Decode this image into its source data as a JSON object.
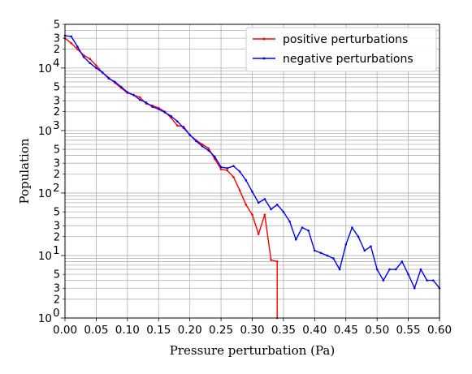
{
  "chart_data": {
    "type": "line",
    "xlabel": "Pressure perturbation (Pa)",
    "ylabel": "Population",
    "xlim": [
      0.0,
      0.6
    ],
    "ylim": [
      1,
      50000
    ],
    "y_scale": "log",
    "grid": true,
    "legend_position": "top-right",
    "x_ticks": [
      "0.00",
      "0.05",
      "0.10",
      "0.15",
      "0.20",
      "0.25",
      "0.30",
      "0.35",
      "0.40",
      "0.45",
      "0.50",
      "0.55",
      "0.60"
    ],
    "x_tick_values": [
      0.0,
      0.05,
      0.1,
      0.15,
      0.2,
      0.25,
      0.3,
      0.35,
      0.4,
      0.45,
      0.5,
      0.55,
      0.6
    ],
    "y_major_ticks": [
      {
        "value": 1,
        "mantissa": "10",
        "exp": "0"
      },
      {
        "value": 10,
        "mantissa": "10",
        "exp": "1"
      },
      {
        "value": 100,
        "mantissa": "10",
        "exp": "2"
      },
      {
        "value": 1000,
        "mantissa": "10",
        "exp": "3"
      },
      {
        "value": 10000,
        "mantissa": "10",
        "exp": "4"
      }
    ],
    "y_minor_labeled": [
      {
        "value": 2,
        "label": "2"
      },
      {
        "value": 3,
        "label": "3"
      },
      {
        "value": 5,
        "label": "5"
      },
      {
        "value": 20,
        "label": "2"
      },
      {
        "value": 30,
        "label": "3"
      },
      {
        "value": 50,
        "label": "5"
      },
      {
        "value": 200,
        "label": "2"
      },
      {
        "value": 300,
        "label": "3"
      },
      {
        "value": 500,
        "label": "5"
      },
      {
        "value": 2000,
        "label": "2"
      },
      {
        "value": 3000,
        "label": "3"
      },
      {
        "value": 5000,
        "label": "5"
      },
      {
        "value": 20000,
        "label": "2"
      },
      {
        "value": 30000,
        "label": "3"
      },
      {
        "value": 50000,
        "label": "5"
      }
    ],
    "series": [
      {
        "name": "positive perturbations",
        "color": "#ff0000",
        "x": [
          0.0,
          0.01,
          0.02,
          0.03,
          0.04,
          0.05,
          0.06,
          0.07,
          0.08,
          0.09,
          0.1,
          0.11,
          0.12,
          0.13,
          0.14,
          0.15,
          0.16,
          0.17,
          0.18,
          0.19,
          0.2,
          0.21,
          0.22,
          0.23,
          0.24,
          0.25,
          0.26,
          0.27,
          0.28,
          0.29,
          0.3,
          0.31,
          0.32,
          0.33,
          0.34,
          0.34
        ],
        "y": [
          30000,
          25000,
          20000,
          16000,
          14000,
          11000,
          8500,
          7000,
          5800,
          4800,
          4000,
          3700,
          3400,
          2700,
          2500,
          2300,
          2000,
          1600,
          1200,
          1150,
          850,
          700,
          600,
          520,
          350,
          240,
          230,
          180,
          110,
          65,
          45,
          22,
          45,
          8.5,
          8,
          1
        ]
      },
      {
        "name": "negative perturbations",
        "color": "#0000ff",
        "x": [
          0.0,
          0.01,
          0.02,
          0.03,
          0.04,
          0.05,
          0.06,
          0.07,
          0.08,
          0.09,
          0.1,
          0.11,
          0.12,
          0.13,
          0.14,
          0.15,
          0.16,
          0.17,
          0.18,
          0.19,
          0.2,
          0.21,
          0.22,
          0.23,
          0.24,
          0.25,
          0.26,
          0.27,
          0.28,
          0.29,
          0.3,
          0.31,
          0.32,
          0.33,
          0.34,
          0.35,
          0.36,
          0.37,
          0.38,
          0.39,
          0.4,
          0.41,
          0.42,
          0.43,
          0.44,
          0.45,
          0.46,
          0.47,
          0.48,
          0.49,
          0.5,
          0.51,
          0.52,
          0.53,
          0.54,
          0.55,
          0.56,
          0.57,
          0.58,
          0.59,
          0.6
        ],
        "y": [
          33000,
          32000,
          22000,
          15000,
          12000,
          10000,
          8500,
          6800,
          6000,
          5000,
          4100,
          3700,
          3100,
          2800,
          2400,
          2200,
          1950,
          1700,
          1400,
          1100,
          850,
          680,
          560,
          480,
          380,
          260,
          250,
          270,
          220,
          160,
          105,
          70,
          80,
          55,
          65,
          50,
          35,
          18,
          28,
          25,
          12,
          11,
          10,
          9,
          6,
          15,
          28,
          20,
          12,
          14,
          6,
          4,
          6,
          6,
          8,
          5,
          3,
          6,
          4,
          4,
          3
        ]
      }
    ]
  }
}
